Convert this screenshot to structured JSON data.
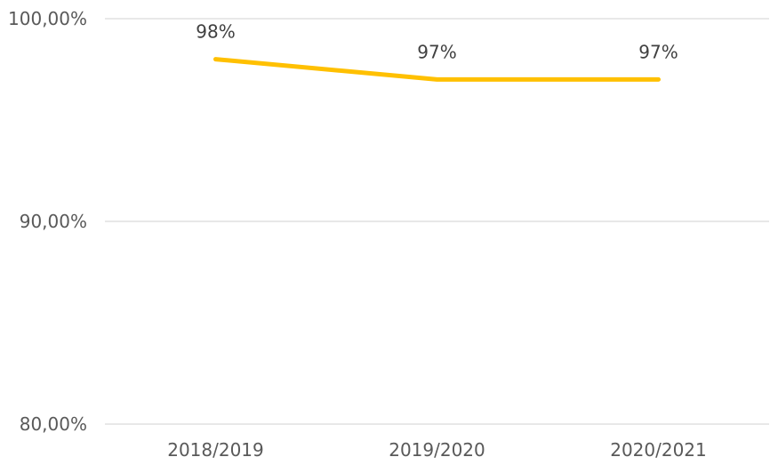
{
  "chart_data": {
    "type": "line",
    "categories": [
      "2018/2019",
      "2019/2020",
      "2020/2021"
    ],
    "series": [
      {
        "values": [
          98,
          97,
          97
        ],
        "data_labels": [
          "98%",
          "97%",
          "97%"
        ],
        "color": "#FFC000"
      }
    ],
    "y_ticks": [
      {
        "value": 100,
        "label": "100,00%"
      },
      {
        "value": 90,
        "label": "90,00%"
      },
      {
        "value": 80,
        "label": "80,00%"
      }
    ],
    "ylim": [
      80,
      100
    ],
    "grid": true,
    "legend": "none",
    "gridline_color": "#D9D9D9",
    "text_color": "#595959"
  }
}
